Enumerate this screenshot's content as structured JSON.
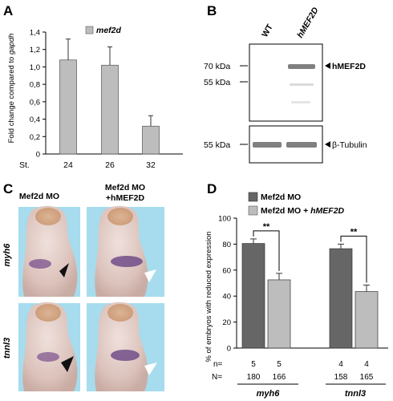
{
  "panels": {
    "A": {
      "letter": "A",
      "chart_data": {
        "type": "bar",
        "categories": [
          "24",
          "26",
          "32"
        ],
        "x_prefix": "St.",
        "values": [
          1.08,
          1.02,
          0.32
        ],
        "errors": [
          0.24,
          0.21,
          0.12
        ],
        "ylabel_prefix": "Fold change compared to ",
        "ylabel_gene": "gapdh",
        "yticks": [
          "0",
          "0,2",
          "0,4",
          "0,6",
          "0,8",
          "1,0",
          "1,2",
          "1,4"
        ],
        "ylim": [
          0,
          1.4
        ],
        "legend": "mef2d",
        "bar_color": "#bdbdbd",
        "legend_position": "top-left"
      }
    },
    "B": {
      "letter": "B",
      "lanes": [
        "WT",
        "hMEF2D"
      ],
      "markers_top": [
        "70 kDa",
        "55 kDa"
      ],
      "marker_bottom": "55 kDa",
      "band_top": "hMEF2D",
      "band_bottom": "β-Tubulin"
    },
    "C": {
      "letter": "C",
      "columns": [
        "Mef2d MO",
        "Mef2d MO",
        "+hMEF2D"
      ],
      "rows": [
        "myh6",
        "tnnl3"
      ],
      "bg_color": "#a6dced"
    },
    "D": {
      "letter": "D",
      "chart_data": {
        "type": "bar",
        "categories": [
          "myh6",
          "tnnl3"
        ],
        "series": [
          {
            "name": "Mef2d MO",
            "values": [
              80.5,
              76.5
            ],
            "errors": [
              3.5,
              3.5
            ],
            "color": "#666666"
          },
          {
            "name": "Mef2d MO + hMEF2D",
            "values": [
              52.5,
              43.5
            ],
            "errors": [
              5.0,
              5.0
            ],
            "color": "#bdbdbd"
          }
        ],
        "legend_parts": [
          "Mef2d MO",
          "Mef2d MO + ",
          "hMEF2D"
        ],
        "ylabel": "% of embryos with reduced expression",
        "yticks": [
          "0",
          "20",
          "40",
          "60",
          "80",
          "100"
        ],
        "ylim": [
          0,
          100
        ],
        "significance": [
          "**",
          "**"
        ],
        "n_label": "n=",
        "N_label": "N=",
        "n_values": [
          [
            "5",
            "5"
          ],
          [
            "4",
            "4"
          ]
        ],
        "N_values": [
          [
            "180",
            "166"
          ],
          [
            "158",
            "165"
          ]
        ]
      }
    }
  }
}
